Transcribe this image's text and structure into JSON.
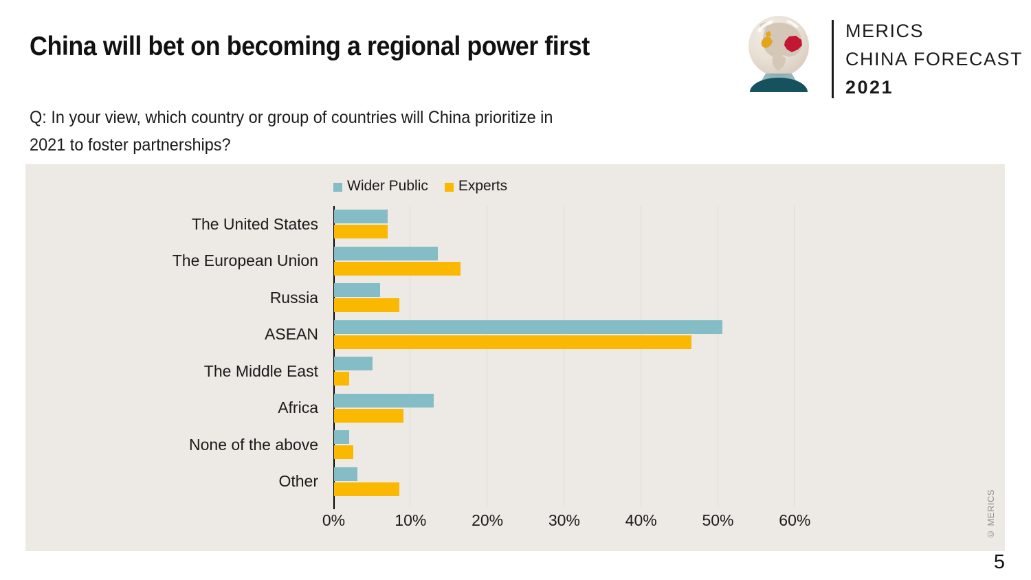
{
  "header": {
    "title": "China will bet on becoming a regional power first",
    "question_line1": "Q: In your view, which country or group of countries will China prioritize in",
    "question_line2": "2021 to foster partnerships?"
  },
  "logo": {
    "brand": "MERICS",
    "product": "CHINA FORECAST",
    "year": "2021"
  },
  "chart_data": {
    "type": "bar",
    "orientation": "horizontal",
    "title": "",
    "xlabel": "",
    "ylabel": "",
    "categories": [
      "The United States",
      "The European Union",
      "Russia",
      "ASEAN",
      "The Middle East",
      "Africa",
      "None of the above",
      "Other"
    ],
    "series": [
      {
        "name": "Wider Public",
        "color": "#84BDC5",
        "values": [
          7,
          13.5,
          6,
          50.5,
          5,
          13,
          2,
          3
        ]
      },
      {
        "name": "Experts",
        "color": "#FBB800",
        "values": [
          7,
          16.5,
          8.5,
          46.5,
          2,
          9,
          2.5,
          8.5
        ]
      }
    ],
    "x_ticks": [
      "0%",
      "10%",
      "20%",
      "30%",
      "40%",
      "50%",
      "60%"
    ],
    "xlim": [
      0,
      60
    ],
    "grid": true,
    "legend_position": "top",
    "values_unit": "percent"
  },
  "footer": {
    "copyright": "© MERICS",
    "page_number": "5"
  },
  "colors": {
    "panel_bg": "#EDE9E4",
    "gridline": "#DFD9D3",
    "axis": "#000000",
    "wider_public": "#84BDC5",
    "experts": "#FBB800",
    "logo_base_dark_teal": "#15525E",
    "logo_base_light_teal": "#7FA9B0",
    "logo_europe_yellow": "#E3A51A",
    "logo_china_red": "#C31632"
  }
}
